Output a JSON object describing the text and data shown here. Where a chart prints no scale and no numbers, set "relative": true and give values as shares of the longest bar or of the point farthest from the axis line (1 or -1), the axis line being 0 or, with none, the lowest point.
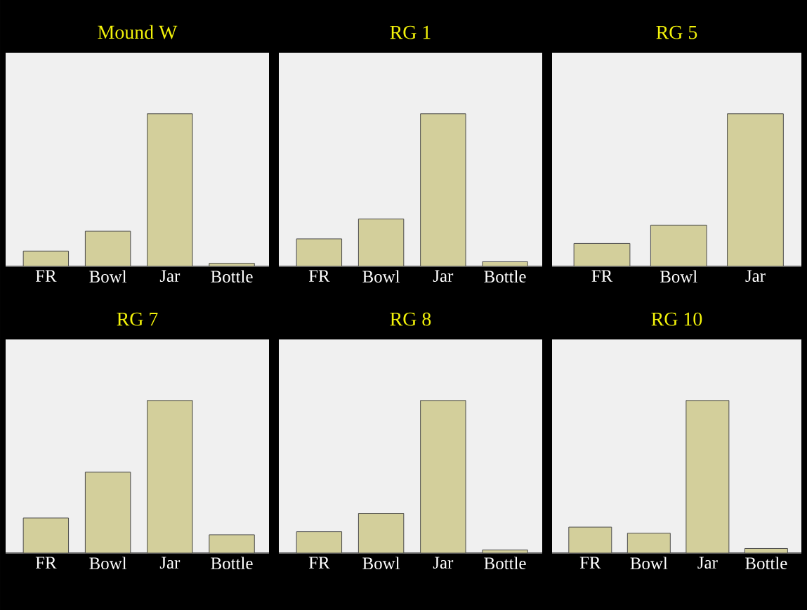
{
  "chart_data": [
    {
      "type": "bar",
      "title": "Mound W",
      "categories": [
        "FR",
        "Bowl",
        "Jar",
        "Bottle"
      ],
      "values": [
        0.1,
        0.23,
        1,
        0.02
      ],
      "color": "#d3cf9b",
      "relative": true
    },
    {
      "type": "bar",
      "title": "RG 1",
      "categories": [
        "FR",
        "Bowl",
        "Jar",
        "Bottle"
      ],
      "values": [
        0.18,
        0.31,
        1,
        0.03
      ],
      "color": "#d3cf9b",
      "relative": true
    },
    {
      "type": "bar",
      "title": "RG 5",
      "categories": [
        "FR",
        "Bowl",
        "Jar"
      ],
      "values": [
        0.15,
        0.27,
        1
      ],
      "color": "#d3cf9b",
      "relative": true
    },
    {
      "type": "bar",
      "title": "RG 7",
      "categories": [
        "FR",
        "Bowl",
        "Jar",
        "Bottle"
      ],
      "values": [
        0.23,
        0.53,
        1,
        0.12
      ],
      "color": "#d3cf9b",
      "relative": true
    },
    {
      "type": "bar",
      "title": "RG 8",
      "categories": [
        "FR",
        "Bowl",
        "Jar",
        "Bottle"
      ],
      "values": [
        0.14,
        0.26,
        1,
        0.02
      ],
      "color": "#d3cf9b",
      "relative": true
    },
    {
      "type": "bar",
      "title": "RG 10",
      "categories": [
        "FR",
        "Bowl",
        "Jar",
        "Bottle"
      ],
      "values": [
        0.17,
        0.13,
        1,
        0.03
      ],
      "color": "#d3cf9b",
      "relative": true
    }
  ]
}
